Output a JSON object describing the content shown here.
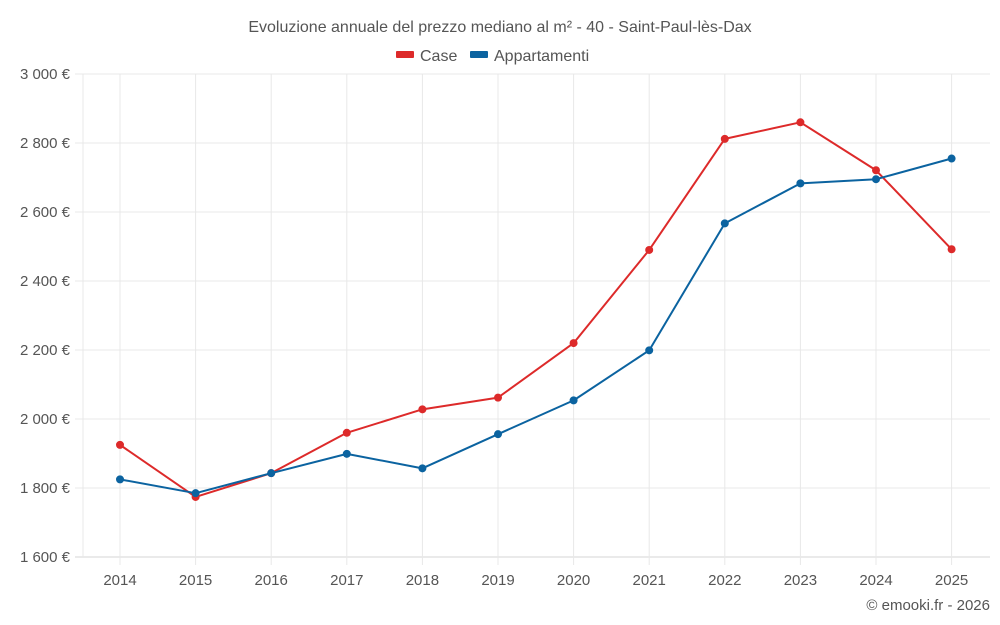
{
  "chart_data": {
    "type": "line",
    "title": "Evoluzione annuale del prezzo mediano al m² - 40 - Saint-Paul-lès-Dax",
    "xlabel": "",
    "ylabel": "",
    "categories": [
      "2014",
      "2015",
      "2016",
      "2017",
      "2018",
      "2019",
      "2020",
      "2021",
      "2022",
      "2023",
      "2024",
      "2025"
    ],
    "series": [
      {
        "name": "Case",
        "color": "#dd2a2a",
        "values": [
          1925,
          1774,
          1843,
          1960,
          2028,
          2062,
          2220,
          2490,
          2812,
          2860,
          2721,
          2492
        ]
      },
      {
        "name": "Appartamenti",
        "color": "#0b63a0",
        "values": [
          1825,
          1785,
          1843,
          1899,
          1857,
          1956,
          2054,
          2199,
          2567,
          2683,
          2695,
          2755
        ]
      }
    ],
    "ylim": [
      1600,
      3000
    ],
    "yticks": [
      1600,
      1800,
      2000,
      2200,
      2400,
      2600,
      2800,
      3000
    ],
    "ytick_labels": [
      "1 600 €",
      "1 800 €",
      "2 000 €",
      "2 200 €",
      "2 400 €",
      "2 600 €",
      "2 800 €",
      "3 000 €"
    ],
    "grid": true,
    "legend_position": "top-center",
    "credit": "© emooki.fr - 2026"
  }
}
